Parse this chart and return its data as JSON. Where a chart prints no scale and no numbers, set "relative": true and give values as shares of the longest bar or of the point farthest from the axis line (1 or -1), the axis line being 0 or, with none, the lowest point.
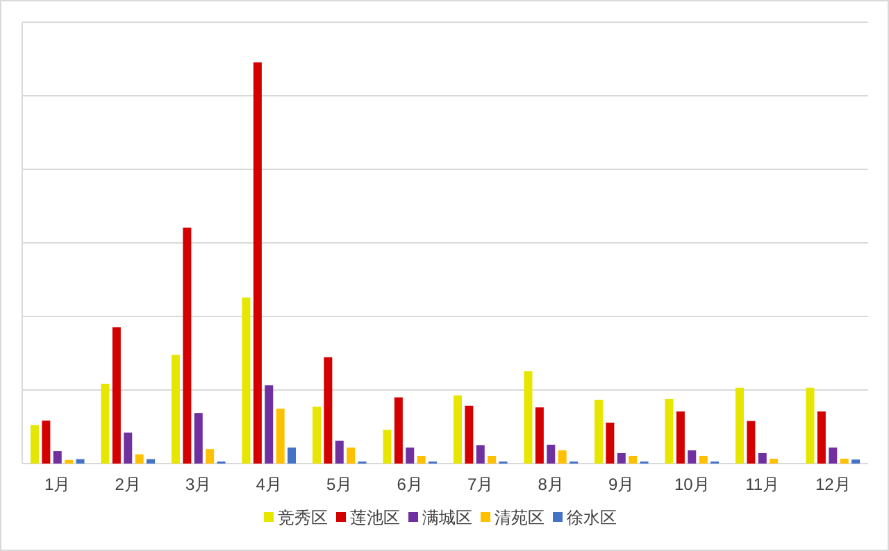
{
  "chart_data": {
    "type": "bar",
    "relative": true,
    "grid": "y",
    "legend": "bottom",
    "categories": [
      "1月",
      "2月",
      "3月",
      "4月",
      "5月",
      "6月",
      "7月",
      "8月",
      "9月",
      "10月",
      "11月",
      "12月"
    ],
    "series": [
      {
        "name": "竞秀区",
        "color": "#e6e600",
        "values": [
          0.096,
          0.199,
          0.271,
          0.414,
          0.142,
          0.084,
          0.17,
          0.23,
          0.159,
          0.161,
          0.189,
          0.189
        ]
      },
      {
        "name": "莲池区",
        "color": "#d40000",
        "values": [
          0.107,
          0.34,
          0.588,
          1,
          0.265,
          0.165,
          0.144,
          0.14,
          0.102,
          0.13,
          0.106,
          0.13
        ]
      },
      {
        "name": "满城区",
        "color": "#7030a0",
        "values": [
          0.031,
          0.077,
          0.126,
          0.195,
          0.057,
          0.04,
          0.046,
          0.047,
          0.026,
          0.033,
          0.026,
          0.04
        ]
      },
      {
        "name": "清苑区",
        "color": "#ffc000",
        "values": [
          0.009,
          0.023,
          0.036,
          0.137,
          0.04,
          0.019,
          0.019,
          0.033,
          0.019,
          0.019,
          0.012,
          0.012
        ]
      },
      {
        "name": "徐水区",
        "color": "#4472c4",
        "values": [
          0.011,
          0.011,
          0.005,
          0.04,
          0.005,
          0.005,
          0.005,
          0.005,
          0.005,
          0.005,
          0,
          0.01
        ]
      }
    ]
  }
}
